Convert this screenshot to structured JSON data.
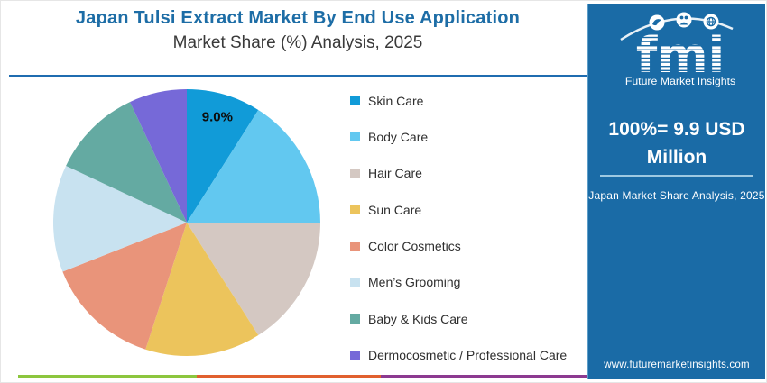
{
  "header": {
    "title": "Japan Tulsi Extract Market By End Use Application",
    "subtitle": "Market Share (%) Analysis, 2025"
  },
  "chart_data": {
    "type": "pie",
    "title": "Japan Tulsi Extract Market By End Use Application",
    "subtitle": "Market Share (%) Analysis, 2025",
    "categories": [
      "Skin Care",
      "Body Care",
      "Hair Care",
      "Sun Care",
      "Color Cosmetics",
      "Men’s Grooming",
      "Baby & Kids Care",
      "Dermocosmetic / Professional Care"
    ],
    "values": [
      9,
      16,
      16,
      14,
      14,
      13,
      11,
      7
    ],
    "unit": "%",
    "colors": [
      "#119bd8",
      "#62c8f0",
      "#d4c8c2",
      "#ecc45c",
      "#e9947a",
      "#c8e2f0",
      "#64aaa2",
      "#7669d8"
    ],
    "start_angle_deg": 0,
    "clockwise": true,
    "slice_label": {
      "index": 0,
      "text": "9.0%"
    },
    "legend_position": "right",
    "total_note": "100%= 9.9 USD Million"
  },
  "side_panel": {
    "logo": {
      "text": "fmi",
      "tagline": "Future Market Insights"
    },
    "headline": "100%= 9.9 USD Million",
    "caption": "Japan Market Share Analysis, 2025",
    "website": "www.futuremarketinsights.com"
  },
  "theme": {
    "title_color": "#1d6da6",
    "subtitle_color": "#3a3a3a",
    "header_rule_color": "#1f6cb0",
    "panel_bg": "#1a6ba6",
    "divider_color": "#9ec9e2",
    "strip_colors": [
      "#8cc63e",
      "#e1602e",
      "#8c3a90"
    ]
  }
}
